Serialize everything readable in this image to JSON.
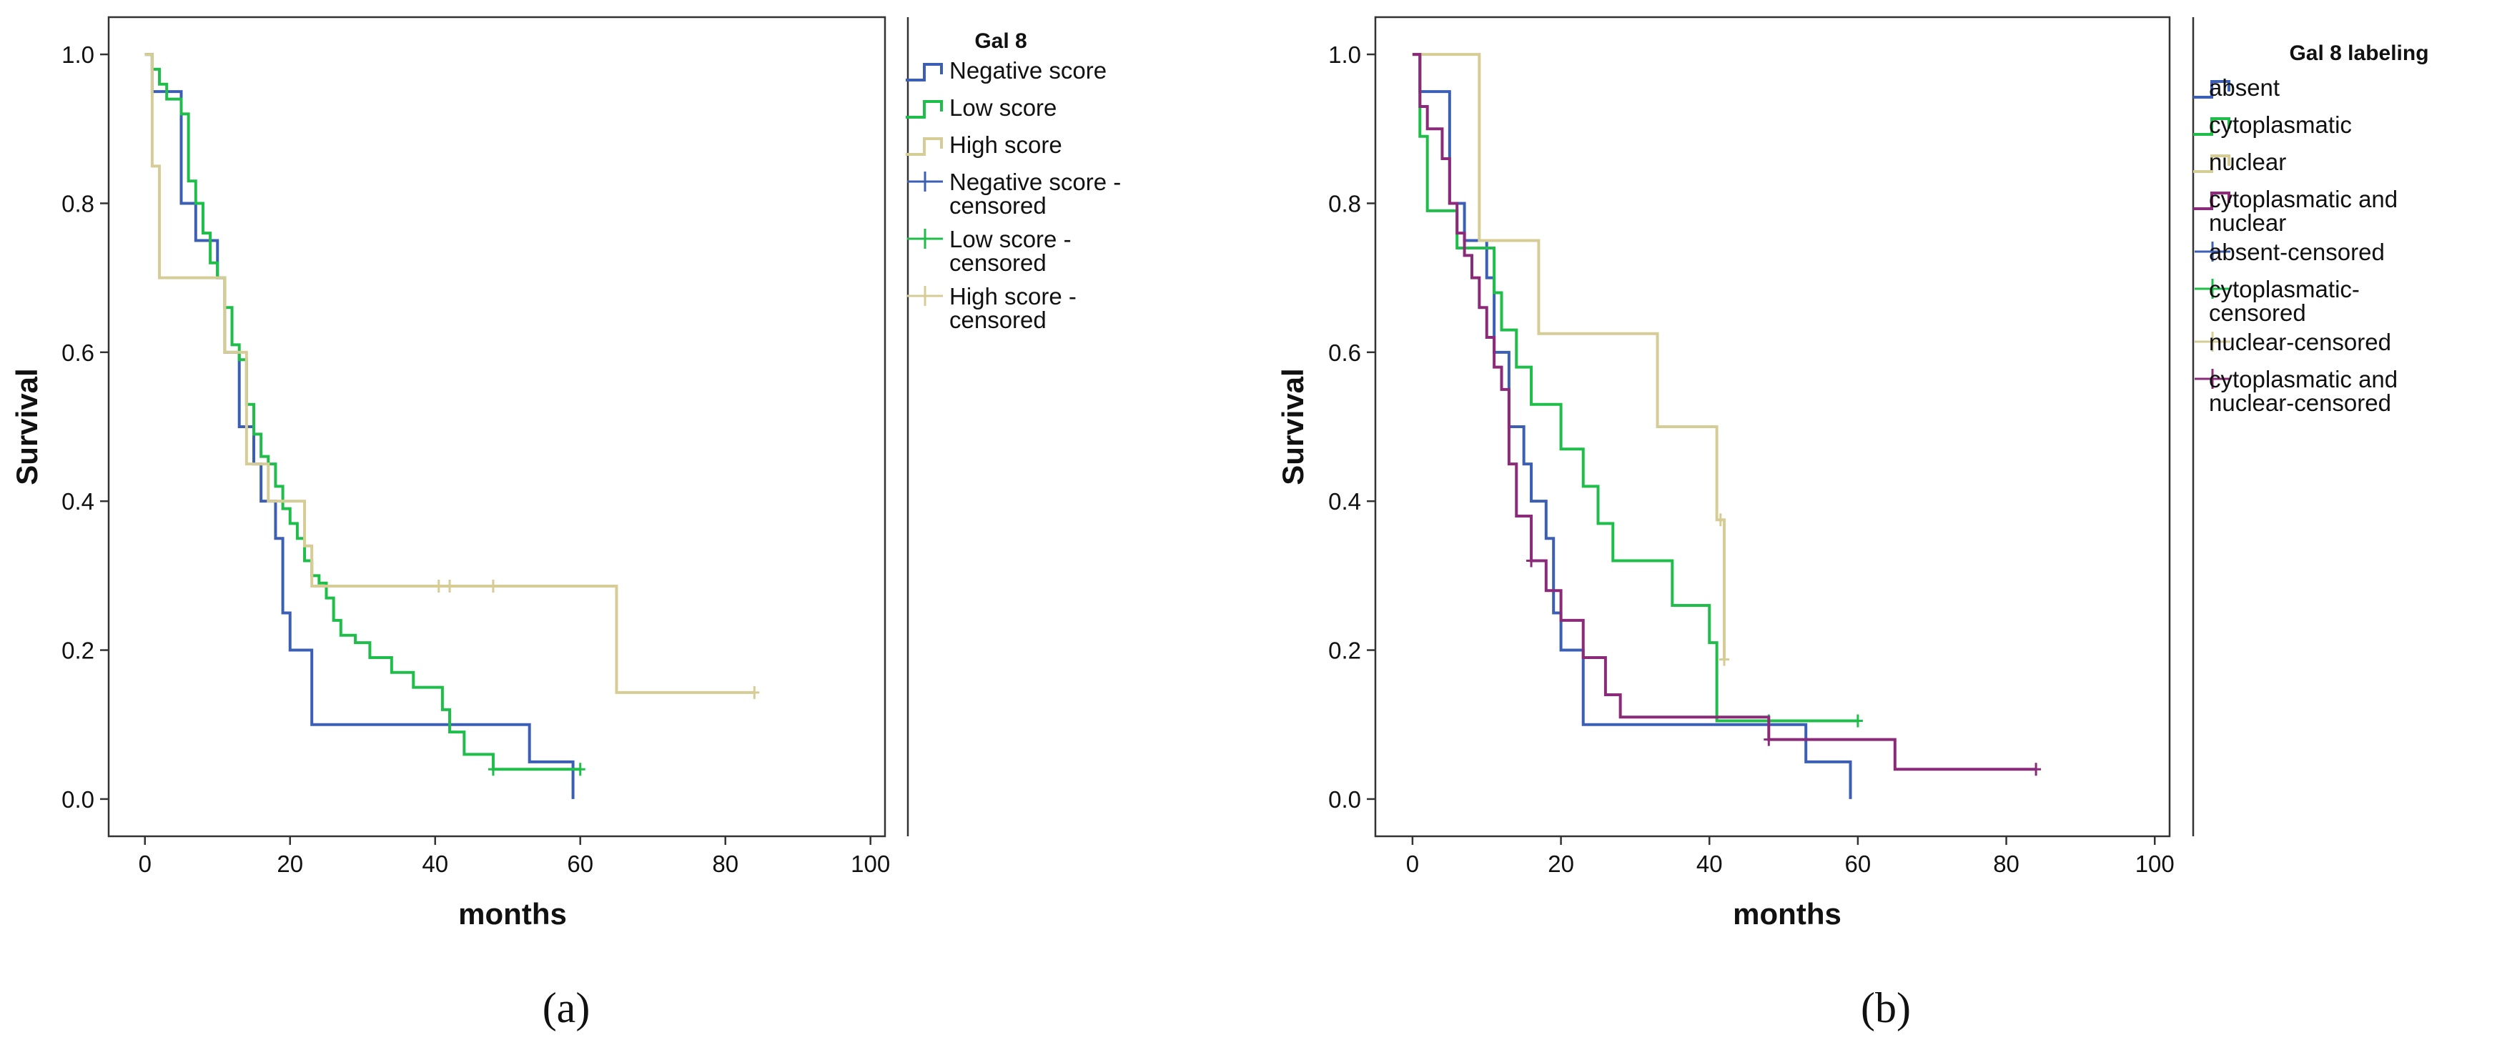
{
  "colors": {
    "blue": "#3b5fb5",
    "green": "#1fbe4a",
    "tan": "#d6cc95",
    "purple": "#8a2a78",
    "axis": "#333333"
  },
  "chart_data": [
    {
      "panel": "a",
      "type": "line",
      "subtype": "kaplan-meier",
      "title": "",
      "xlabel": "months",
      "ylabel": "Survival",
      "xlim": [
        -5,
        102
      ],
      "ylim": [
        -0.05,
        1.05
      ],
      "xticks": [
        0,
        20,
        40,
        60,
        80,
        100
      ],
      "yticks": [
        0.0,
        0.2,
        0.4,
        0.6,
        0.8,
        1.0
      ],
      "legend_title": "Gal 8",
      "legend": [
        {
          "label": "Negative score",
          "marker": "step",
          "color": "blue"
        },
        {
          "label": "Low score",
          "marker": "step",
          "color": "green"
        },
        {
          "label": "High score",
          "marker": "step",
          "color": "tan"
        },
        {
          "label": "Negative score - censored",
          "lines": [
            "Negative score -",
            "censored"
          ],
          "marker": "cross",
          "color": "blue"
        },
        {
          "label": "Low score - censored",
          "lines": [
            "Low score -",
            "censored"
          ],
          "marker": "cross",
          "color": "green"
        },
        {
          "label": "High score - censored",
          "lines": [
            "High score -",
            "censored"
          ],
          "marker": "cross",
          "color": "tan"
        }
      ],
      "series": [
        {
          "name": "Negative score",
          "color": "blue",
          "times": [
            0,
            1,
            5,
            7,
            10,
            11,
            13,
            15,
            16,
            18,
            19,
            20,
            23,
            53,
            59
          ],
          "survival": [
            1.0,
            0.95,
            0.8,
            0.75,
            0.7,
            0.6,
            0.5,
            0.45,
            0.4,
            0.35,
            0.25,
            0.2,
            0.1,
            0.05,
            0.0
          ],
          "end": 59,
          "censored": []
        },
        {
          "name": "Low score",
          "color": "green",
          "times": [
            0,
            1,
            2,
            3,
            5,
            6,
            7,
            8,
            9,
            10,
            11,
            12,
            13,
            14,
            15,
            16,
            17,
            18,
            19,
            20,
            21,
            22,
            23,
            24,
            25,
            26,
            27,
            29,
            31,
            34,
            37,
            41,
            42,
            44,
            48
          ],
          "survival": [
            1.0,
            0.98,
            0.96,
            0.94,
            0.92,
            0.83,
            0.8,
            0.76,
            0.72,
            0.7,
            0.66,
            0.61,
            0.59,
            0.53,
            0.49,
            0.46,
            0.45,
            0.42,
            0.39,
            0.37,
            0.35,
            0.32,
            0.3,
            0.29,
            0.27,
            0.24,
            0.22,
            0.21,
            0.19,
            0.17,
            0.15,
            0.12,
            0.09,
            0.06,
            0.04
          ],
          "end": 60,
          "censored": [
            [
              48,
              0.04
            ],
            [
              60,
              0.04
            ]
          ]
        },
        {
          "name": "High score",
          "color": "tan",
          "times": [
            0,
            1,
            2,
            11,
            14,
            17,
            22,
            23,
            65
          ],
          "survival": [
            1.0,
            0.85,
            0.7,
            0.6,
            0.45,
            0.4,
            0.34,
            0.286,
            0.143
          ],
          "end": 84,
          "censored": [
            [
              40.5,
              0.286
            ],
            [
              42,
              0.286
            ],
            [
              48,
              0.286
            ],
            [
              84,
              0.143
            ]
          ]
        }
      ]
    },
    {
      "panel": "b",
      "type": "line",
      "subtype": "kaplan-meier",
      "title": "",
      "xlabel": "months",
      "ylabel": "Survival",
      "xlim": [
        -5,
        102
      ],
      "ylim": [
        -0.05,
        1.05
      ],
      "xticks": [
        0,
        20,
        40,
        60,
        80,
        100
      ],
      "yticks": [
        0.0,
        0.2,
        0.4,
        0.6,
        0.8,
        1.0
      ],
      "legend_title": "Gal 8 labeling",
      "legend": [
        {
          "label": "absent",
          "lines": [
            "absent"
          ],
          "marker": "step",
          "color": "blue"
        },
        {
          "label": "cytoplasmatic",
          "lines": [
            "cytoplasmatic"
          ],
          "marker": "step",
          "color": "green"
        },
        {
          "label": "nuclear",
          "lines": [
            "nuclear"
          ],
          "marker": "step",
          "color": "tan"
        },
        {
          "label": "cytoplasmatic and nuclear",
          "lines": [
            "cytoplasmatic and",
            "nuclear"
          ],
          "marker": "step",
          "color": "purple"
        },
        {
          "label": "absent-censored",
          "lines": [
            "absent-censored"
          ],
          "marker": "cross",
          "color": "blue"
        },
        {
          "label": "cytoplasmatic-censored",
          "lines": [
            "cytoplasmatic-",
            "censored"
          ],
          "marker": "cross",
          "color": "green"
        },
        {
          "label": "nuclear-censored",
          "lines": [
            "nuclear-censored"
          ],
          "marker": "cross",
          "color": "tan"
        },
        {
          "label": "cytoplasmatic and nuclear-censored",
          "lines": [
            "cytoplasmatic and",
            "nuclear-censored"
          ],
          "marker": "cross",
          "color": "purple"
        }
      ],
      "series": [
        {
          "name": "absent",
          "color": "blue",
          "times": [
            0,
            1,
            5,
            7,
            10,
            11,
            13,
            15,
            16,
            18,
            19,
            20,
            23,
            53,
            59
          ],
          "survival": [
            1.0,
            0.95,
            0.8,
            0.75,
            0.7,
            0.6,
            0.5,
            0.45,
            0.4,
            0.35,
            0.25,
            0.2,
            0.1,
            0.05,
            0.0
          ],
          "end": 59,
          "censored": []
        },
        {
          "name": "cytoplasmatic",
          "color": "green",
          "times": [
            0,
            1,
            2,
            6,
            11,
            12,
            14,
            16,
            20,
            23,
            25,
            27,
            35,
            40,
            41
          ],
          "survival": [
            1.0,
            0.89,
            0.79,
            0.74,
            0.68,
            0.63,
            0.58,
            0.53,
            0.47,
            0.42,
            0.37,
            0.32,
            0.26,
            0.21,
            0.105
          ],
          "end": 60,
          "censored": [
            [
              48,
              0.105
            ],
            [
              60,
              0.105
            ]
          ]
        },
        {
          "name": "nuclear",
          "color": "tan",
          "times": [
            0,
            9,
            17,
            33,
            41,
            42
          ],
          "survival": [
            1.0,
            0.75,
            0.625,
            0.5,
            0.375,
            0.1875
          ],
          "end": 42,
          "censored": [
            [
              41.5,
              0.375
            ],
            [
              42,
              0.1875
            ]
          ]
        },
        {
          "name": "cytoplasmatic and nuclear",
          "color": "purple",
          "times": [
            0,
            1,
            2,
            4,
            5,
            6,
            7,
            8,
            9,
            10,
            11,
            12,
            13,
            14,
            16,
            18,
            20,
            23,
            26,
            28,
            48,
            65
          ],
          "survival": [
            1.0,
            0.93,
            0.9,
            0.86,
            0.8,
            0.76,
            0.73,
            0.7,
            0.66,
            0.62,
            0.58,
            0.55,
            0.45,
            0.38,
            0.32,
            0.28,
            0.24,
            0.19,
            0.14,
            0.11,
            0.08,
            0.04
          ],
          "end": 84,
          "censored": [
            [
              16,
              0.32
            ],
            [
              48,
              0.08
            ],
            [
              84,
              0.04
            ]
          ]
        }
      ]
    }
  ],
  "panel_labels": [
    "(a)",
    "(b)"
  ]
}
